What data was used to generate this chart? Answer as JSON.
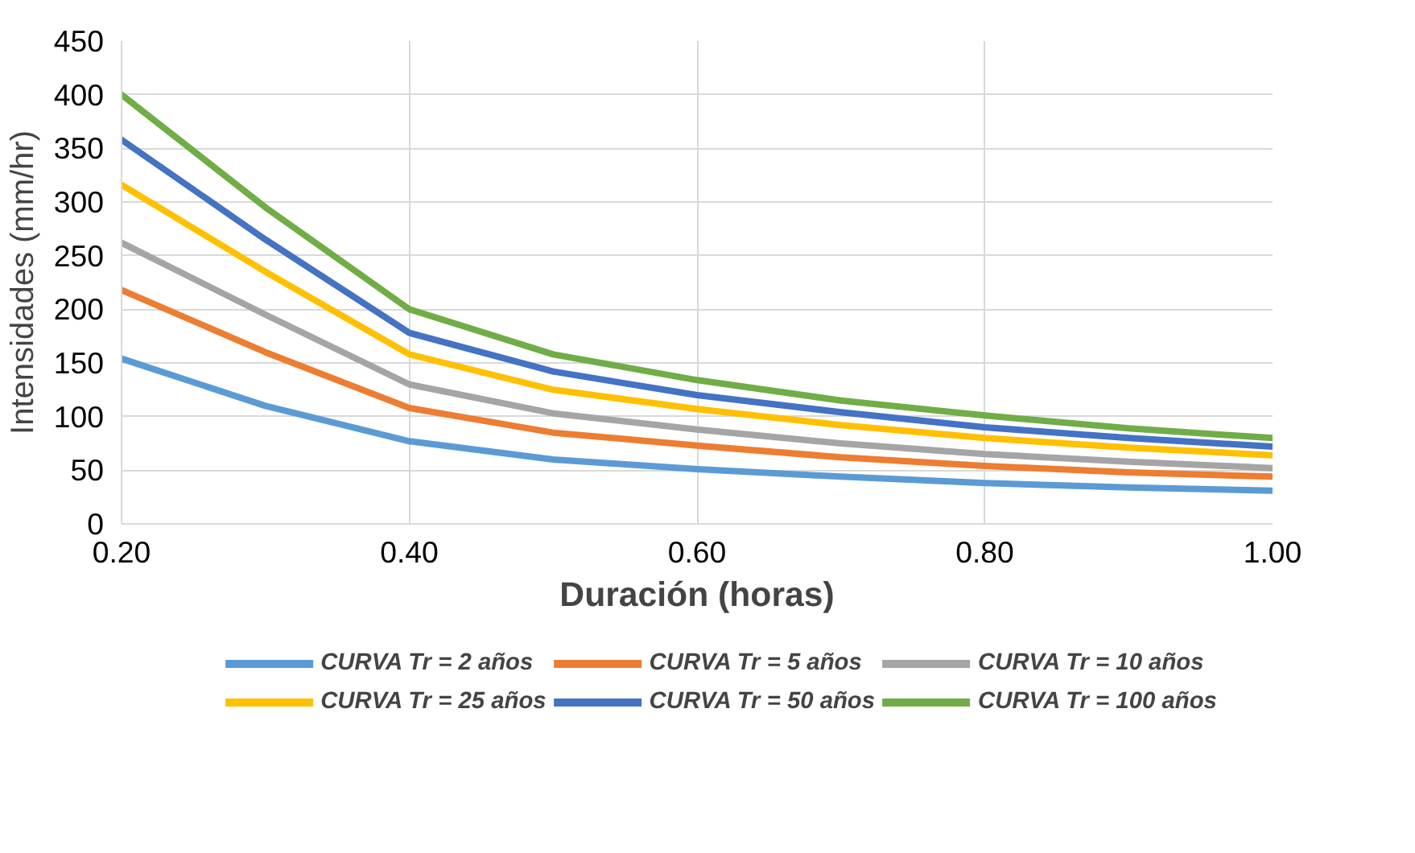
{
  "chart_data": {
    "type": "line",
    "xlabel": "Duración (horas)",
    "ylabel": "Intensidades (mm/hr)",
    "x": [
      0.2,
      0.3,
      0.4,
      0.5,
      0.6,
      0.7,
      0.8,
      0.9,
      1.0
    ],
    "xlim": [
      0.2,
      1.0
    ],
    "xticks": [
      {
        "value": 0.2,
        "label": "0.20"
      },
      {
        "value": 0.4,
        "label": "0.40"
      },
      {
        "value": 0.6,
        "label": "0.60"
      },
      {
        "value": 0.8,
        "label": "0.80"
      },
      {
        "value": 1.0,
        "label": "1.00"
      }
    ],
    "ylim": [
      0,
      450
    ],
    "yticks": [
      0,
      50,
      100,
      150,
      200,
      250,
      300,
      350,
      400,
      450
    ],
    "grid": true,
    "legend": "bottom",
    "marker": "none",
    "line_style": "solid",
    "series": [
      {
        "name": "CURVA Tr = 2 años",
        "color": "#5b9bd5",
        "values": [
          154,
          110,
          77,
          60,
          51,
          44,
          38,
          34,
          31
        ]
      },
      {
        "name": "CURVA Tr = 5 años",
        "color": "#ed7d31",
        "values": [
          218,
          160,
          108,
          85,
          73,
          62,
          54,
          48,
          44
        ]
      },
      {
        "name": "CURVA Tr = 10 años",
        "color": "#a5a5a5",
        "values": [
          262,
          195,
          130,
          103,
          88,
          75,
          65,
          58,
          52
        ]
      },
      {
        "name": "CURVA Tr = 25 años",
        "color": "#ffc000",
        "values": [
          316,
          235,
          158,
          125,
          107,
          92,
          80,
          71,
          64
        ]
      },
      {
        "name": "CURVA Tr = 50 años",
        "color": "#4472c4",
        "values": [
          358,
          265,
          178,
          142,
          120,
          104,
          90,
          80,
          72
        ]
      },
      {
        "name": "CURVA Tr = 100 años",
        "color": "#70ad47",
        "values": [
          400,
          295,
          200,
          158,
          134,
          115,
          101,
          89,
          80
        ]
      }
    ]
  }
}
